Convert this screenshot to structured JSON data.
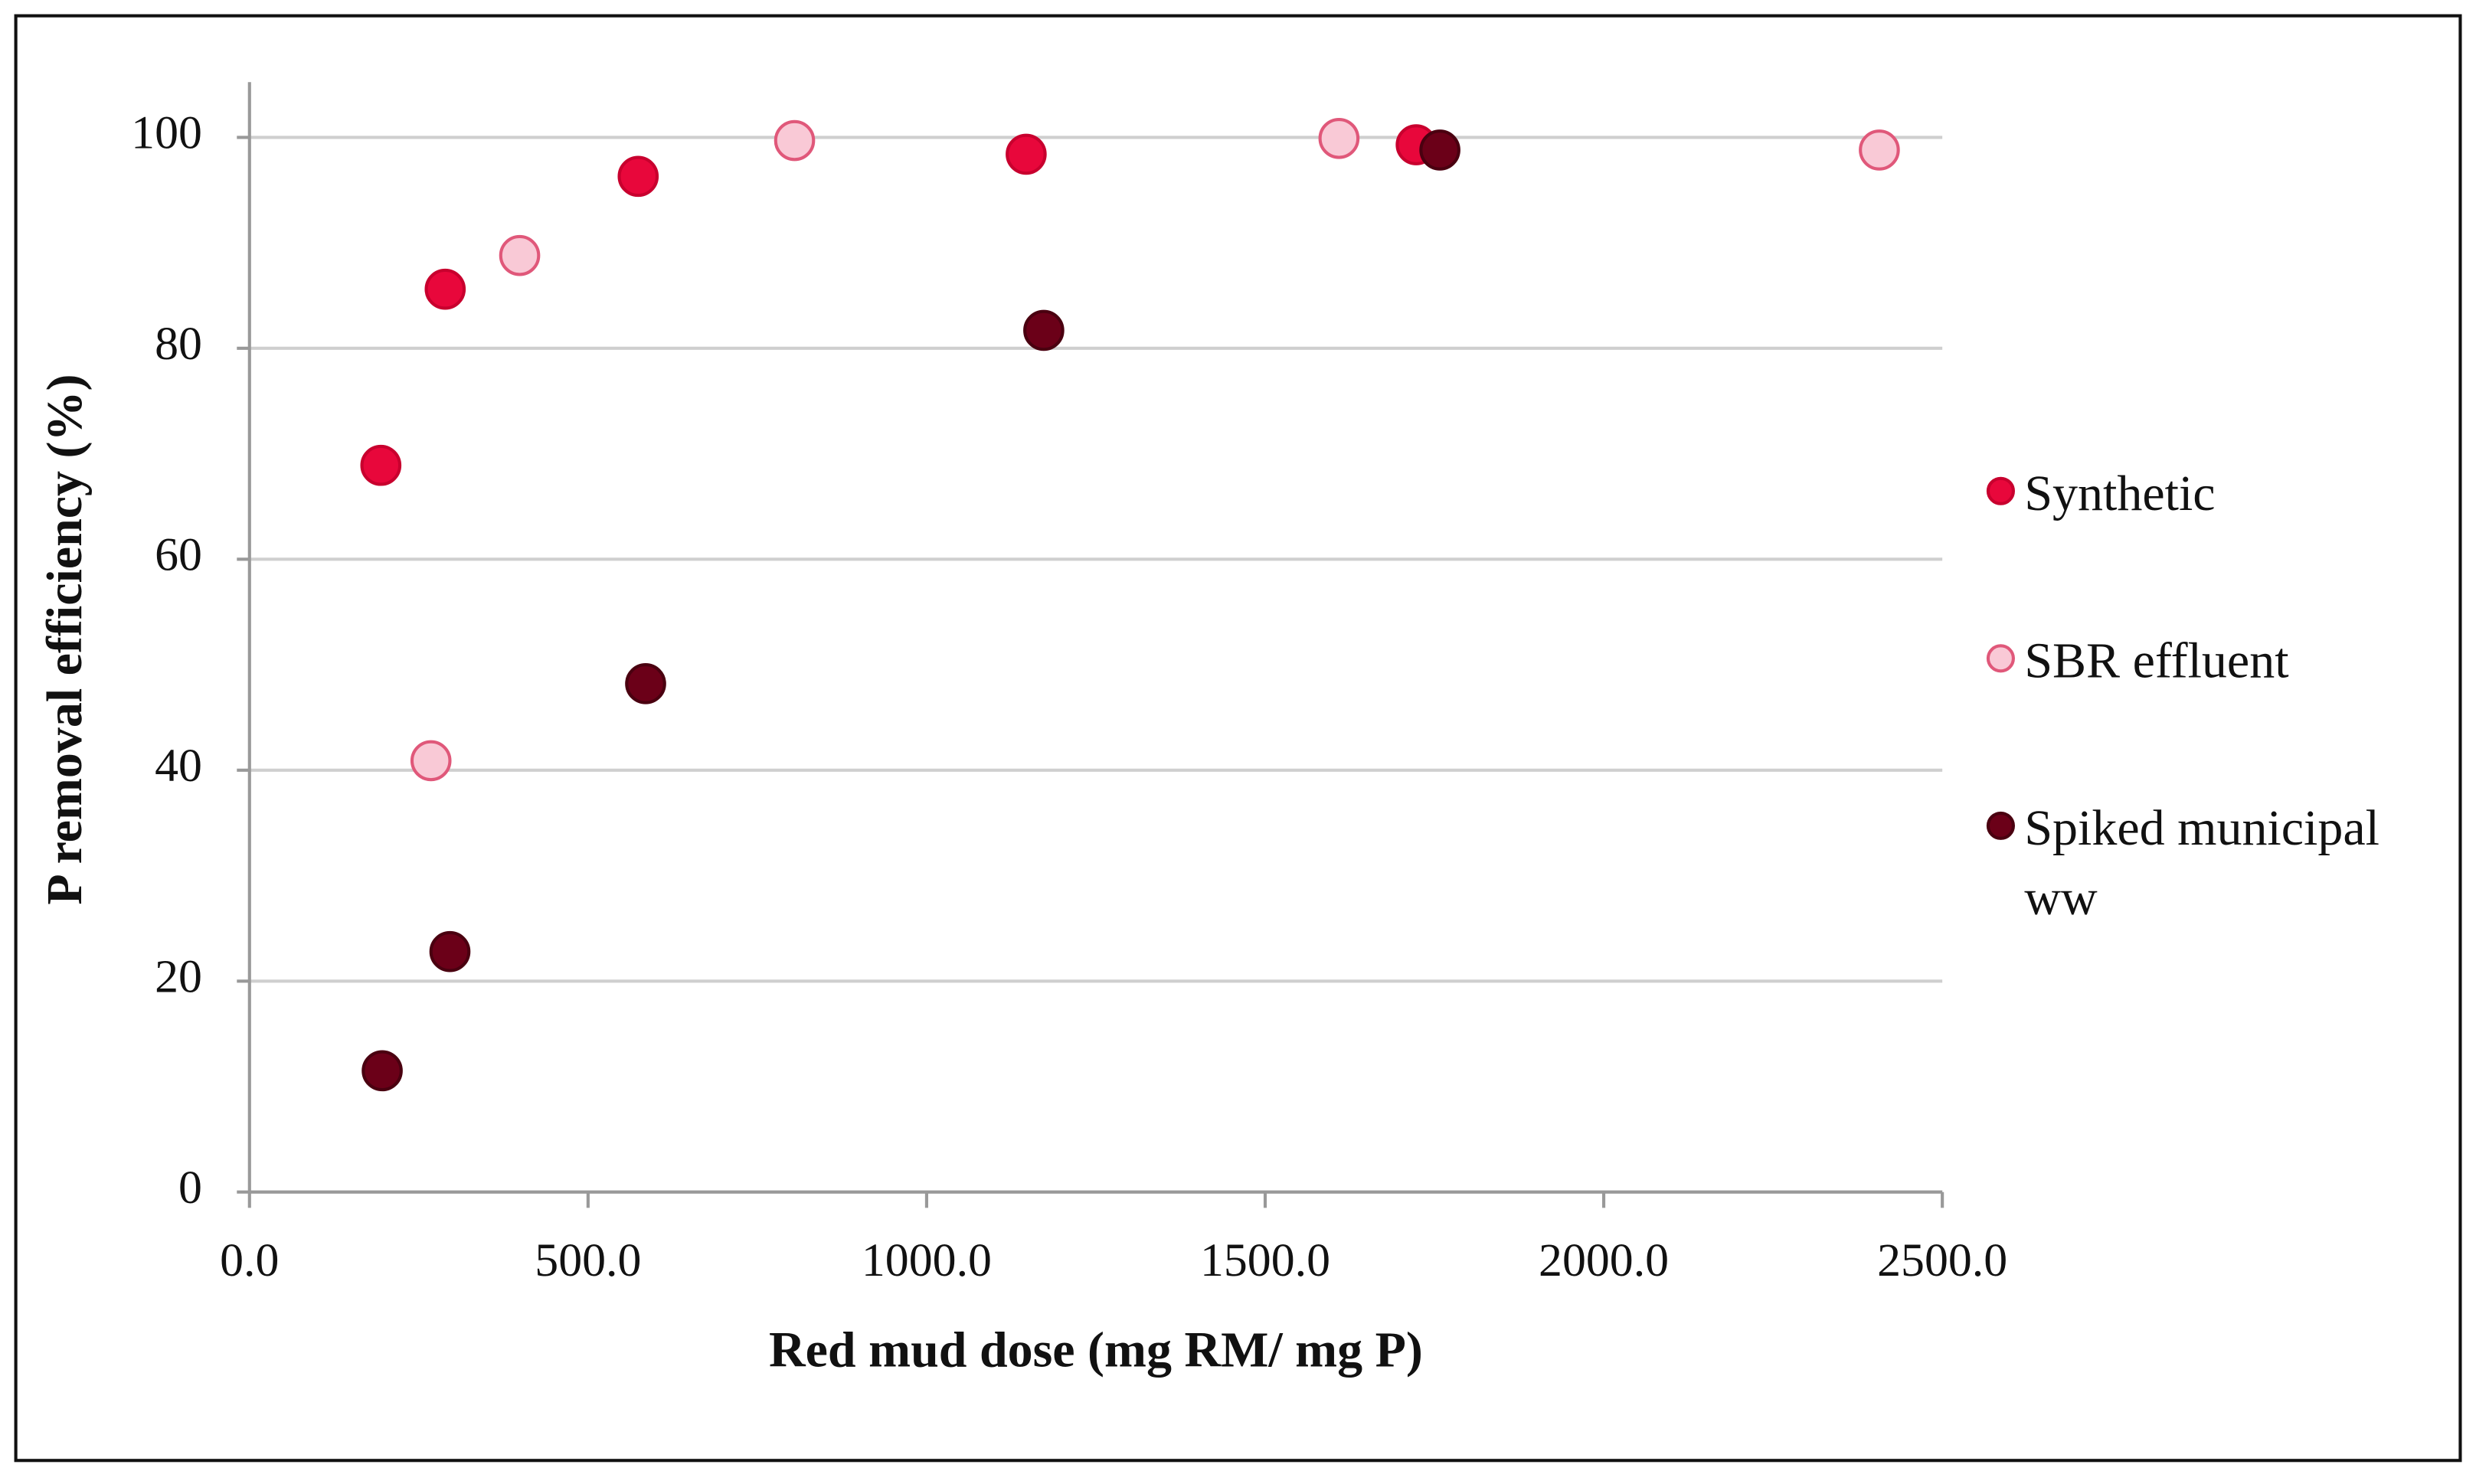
{
  "chart_data": {
    "type": "scatter",
    "x_label": "Red mud dose (mg RM/ mg P)",
    "y_label": "P removal efficiency (%)",
    "xlim": [
      0,
      2500
    ],
    "xticks": [
      {
        "value": 0,
        "label": "0.0"
      },
      {
        "value": 500,
        "label": "500.0"
      },
      {
        "value": 1000,
        "label": "1000.0"
      },
      {
        "value": 1500,
        "label": "1500.0"
      },
      {
        "value": 2000,
        "label": "2000.0"
      },
      {
        "value": 2500,
        "label": "2500.0"
      }
    ],
    "ylim": [
      0,
      100
    ],
    "yticks": [
      0,
      20,
      40,
      60,
      80,
      100
    ],
    "grid": true,
    "legend": "right",
    "series": [
      {
        "name": "Synthetic",
        "color": "#e8073b",
        "edgecolor": "#c8002e",
        "x": [
          194,
          289,
          574,
          1147,
          1723
        ],
        "values": [
          68.9,
          85.6,
          96.3,
          98.4,
          99.3
        ]
      },
      {
        "name": "SBR effluent",
        "color": "#f9c9d6",
        "edgecolor": "#e0587a",
        "x": [
          268,
          399,
          805,
          1609,
          2407
        ],
        "values": [
          40.9,
          88.8,
          99.7,
          99.9,
          98.8
        ]
      },
      {
        "name": "Spiked municipal ww",
        "color": "#6b0018",
        "edgecolor": "#4a0010",
        "x": [
          196,
          296,
          585,
          1173,
          1758
        ],
        "values": [
          11.5,
          22.8,
          48.2,
          81.7,
          98.8
        ]
      }
    ]
  }
}
